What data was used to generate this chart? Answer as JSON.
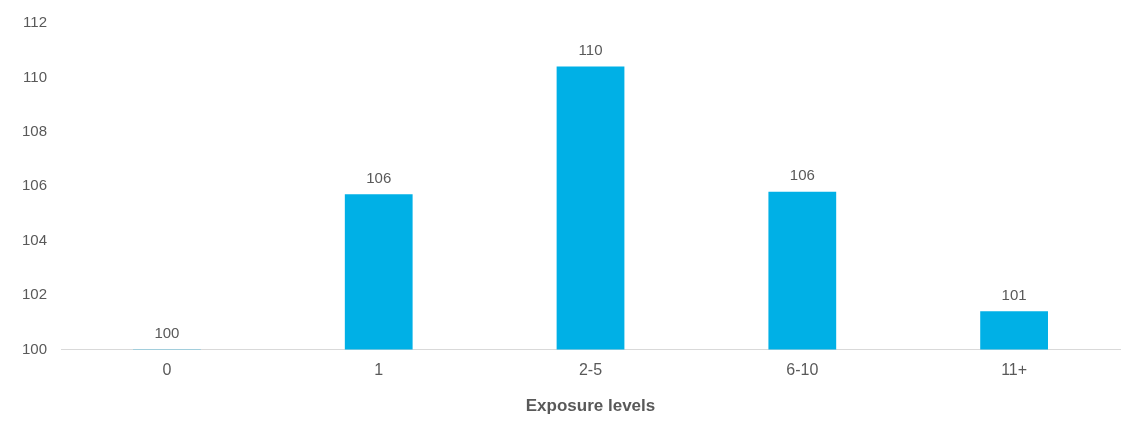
{
  "chart_data": {
    "type": "bar",
    "xlabel": "Exposure levels",
    "categories": [
      "0",
      "1",
      "2-5",
      "6-10",
      "11+"
    ],
    "values": [
      100,
      105.7,
      110.4,
      105.8,
      101.4
    ],
    "value_labels": [
      "100",
      "106",
      "110",
      "106",
      "101"
    ],
    "color": "#00b0e6",
    "ylim": [
      100,
      112
    ],
    "yticks": [
      100,
      102,
      104,
      106,
      108,
      110,
      112
    ],
    "grid": false,
    "legend": false
  }
}
